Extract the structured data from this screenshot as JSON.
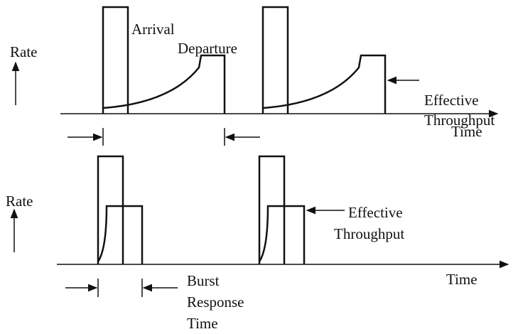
{
  "top": {
    "y_label": "Rate",
    "x_label": "Time",
    "arrival": "Arrival",
    "departure": "Departure",
    "throughput": [
      "Effective",
      "Throughput"
    ]
  },
  "bottom": {
    "y_label": "Rate",
    "x_label": "Time",
    "throughput": [
      "Effective",
      "Throughput"
    ],
    "response": [
      "Burst",
      "Response",
      "Time"
    ]
  }
}
